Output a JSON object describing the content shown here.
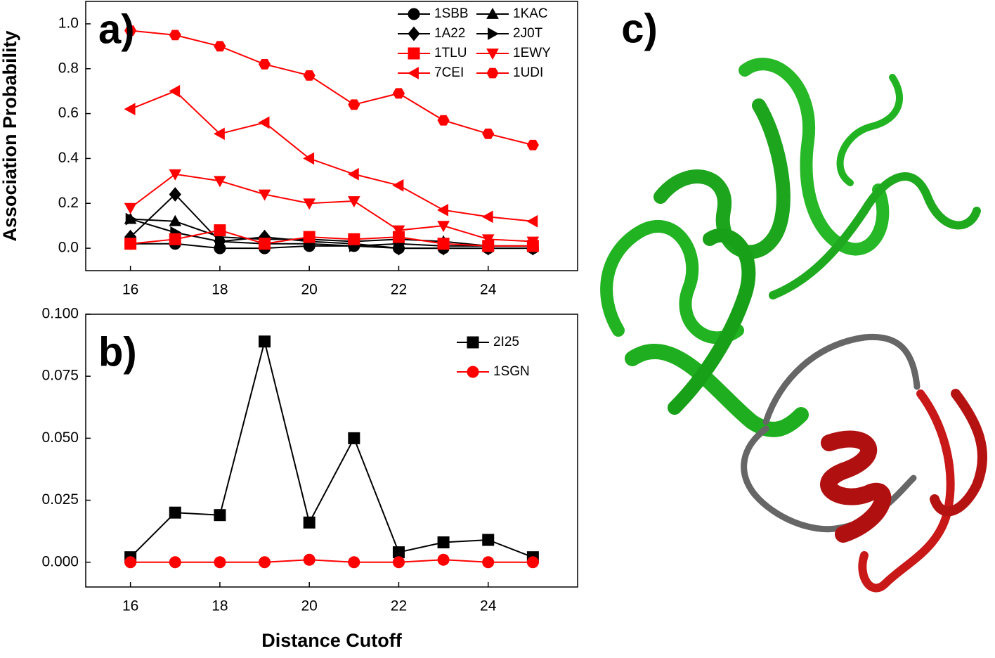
{
  "chart_data": [
    {
      "type": "line",
      "label": "a)",
      "y_label": "Association Probability",
      "x": [
        16,
        17,
        18,
        19,
        20,
        21,
        22,
        23,
        24,
        25
      ],
      "xlim": [
        15,
        26
      ],
      "xticks": [
        16,
        18,
        20,
        22,
        24
      ],
      "ylim": [
        -0.1,
        1.1
      ],
      "yticks": [
        {
          "value": 0,
          "label": "0.0"
        },
        0.2,
        0.4,
        0.6,
        0.8,
        {
          "value": 1,
          "label": "1.0"
        }
      ],
      "legend": "upper right",
      "legend_columns": 2,
      "series": [
        {
          "name": "1SBB",
          "color": "#000000",
          "marker": "circle",
          "values": [
            0.02,
            0.02,
            0.0,
            0.0,
            0.01,
            0.01,
            0.0,
            0.0,
            0.0,
            0.0
          ]
        },
        {
          "name": "1KAC",
          "color": "#000000",
          "marker": "triangle-up",
          "values": [
            0.13,
            0.12,
            0.05,
            0.04,
            0.04,
            0.03,
            0.04,
            0.03,
            0.01,
            0.01
          ]
        },
        {
          "name": "1A22",
          "color": "#000000",
          "marker": "diamond",
          "values": [
            0.05,
            0.24,
            0.03,
            0.05,
            0.03,
            0.02,
            0.0,
            0.0,
            0.0,
            0.0
          ]
        },
        {
          "name": "2J0T",
          "color": "#000000",
          "marker": "triangle-right",
          "values": [
            0.13,
            0.07,
            0.03,
            0.02,
            0.02,
            0.01,
            0.02,
            0.01,
            0.01,
            0.01
          ]
        },
        {
          "name": "1TLU",
          "color": "#ff0000",
          "marker": "square",
          "values": [
            0.02,
            0.04,
            0.08,
            0.02,
            0.05,
            0.04,
            0.05,
            0.02,
            0.01,
            0.01
          ]
        },
        {
          "name": "1EWY",
          "color": "#ff0000",
          "marker": "triangle-down",
          "values": [
            0.18,
            0.33,
            0.3,
            0.24,
            0.2,
            0.21,
            0.08,
            0.1,
            0.04,
            0.03
          ]
        },
        {
          "name": "7CEI",
          "color": "#ff0000",
          "marker": "triangle-left",
          "values": [
            0.62,
            0.7,
            0.51,
            0.56,
            0.4,
            0.33,
            0.28,
            0.17,
            0.14,
            0.12
          ]
        },
        {
          "name": "1UDI",
          "color": "#ff0000",
          "marker": "hexagon",
          "values": [
            0.97,
            0.95,
            0.9,
            0.82,
            0.77,
            0.64,
            0.69,
            0.57,
            0.51,
            0.46
          ]
        }
      ]
    },
    {
      "type": "line",
      "label": "b)",
      "x_label": "Distance Cutoff",
      "x": [
        16,
        17,
        18,
        19,
        20,
        21,
        22,
        23,
        24,
        25
      ],
      "xlim": [
        15,
        26
      ],
      "xticks": [
        16,
        18,
        20,
        22,
        24
      ],
      "ylim": [
        -0.01,
        0.1
      ],
      "yticks": [
        {
          "value": 0,
          "label": "0.000"
        },
        {
          "value": 0.025,
          "label": "0.025"
        },
        {
          "value": 0.05,
          "label": "0.050"
        },
        {
          "value": 0.075,
          "label": "0.075"
        },
        {
          "value": 0.1,
          "label": "0.100"
        }
      ],
      "legend": "upper right",
      "legend_columns": 1,
      "series": [
        {
          "name": "2I25",
          "color": "#000000",
          "marker": "square",
          "values": [
            0.002,
            0.02,
            0.019,
            0.089,
            0.016,
            0.05,
            0.004,
            0.008,
            0.009,
            0.002
          ]
        },
        {
          "name": "1SGN",
          "color": "#ff0000",
          "marker": "circle",
          "values": [
            0,
            0,
            0,
            0,
            0.001,
            0,
            0,
            0.001,
            0,
            0
          ]
        }
      ]
    }
  ],
  "image": {
    "label": "c)"
  }
}
